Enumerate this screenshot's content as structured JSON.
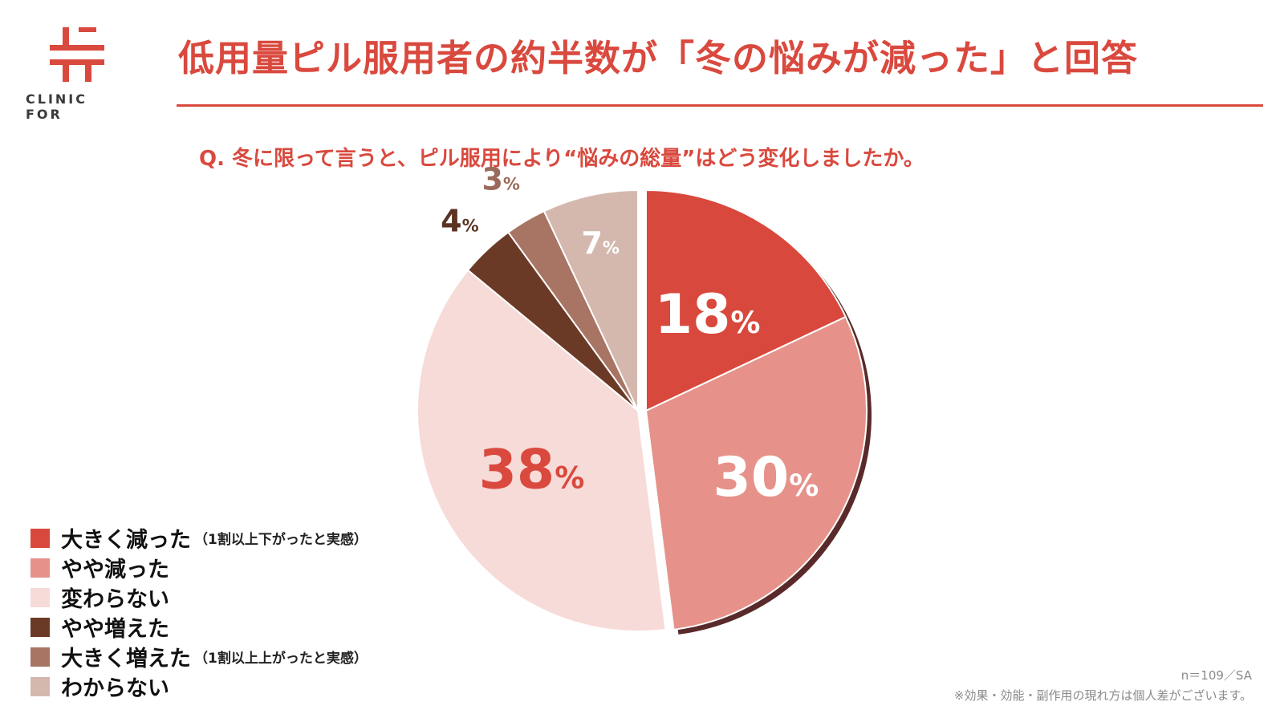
{
  "brand": {
    "name": "CLINIC FOR",
    "color": "#d9493e"
  },
  "header": {
    "title": "低用量ピル服用者の約半数が「冬の悩みが減った」と回答",
    "question": "Q. 冬に限って言うと、ピル服用により“悩みの総量”はどう変化しましたか。"
  },
  "chart_data": {
    "type": "pie",
    "title": "",
    "start": "12 o'clock",
    "direction": "clockwise",
    "value_unit": "%",
    "slices": [
      {
        "label": "大きく減った",
        "note": "（1割以上下がったと実感）",
        "value": 18,
        "color": "#d9483c",
        "label_color": "#ffffff"
      },
      {
        "label": "やや減った",
        "note": "",
        "value": 30,
        "color": "#e6928a",
        "label_color": "#ffffff"
      },
      {
        "label": "変わらない",
        "note": "",
        "value": 38,
        "color": "#f7dbd8",
        "label_color": "#d9493e"
      },
      {
        "label": "やや増えた",
        "note": "",
        "value": 4,
        "color": "#6b3a26",
        "label_color": "#5a3322"
      },
      {
        "label": "大きく増えた",
        "note": "（1割以上上がったと実感）",
        "value": 3,
        "color": "#a87464",
        "label_color": "#9a6a5a"
      },
      {
        "label": "わからない",
        "note": "",
        "value": 7,
        "color": "#d4b8ae",
        "label_color": "#ffffff"
      }
    ]
  },
  "footer": {
    "sample": "n＝109／SA",
    "disclaimer": "※効果・効能・副作用の現れ方は個人差がございます。"
  }
}
